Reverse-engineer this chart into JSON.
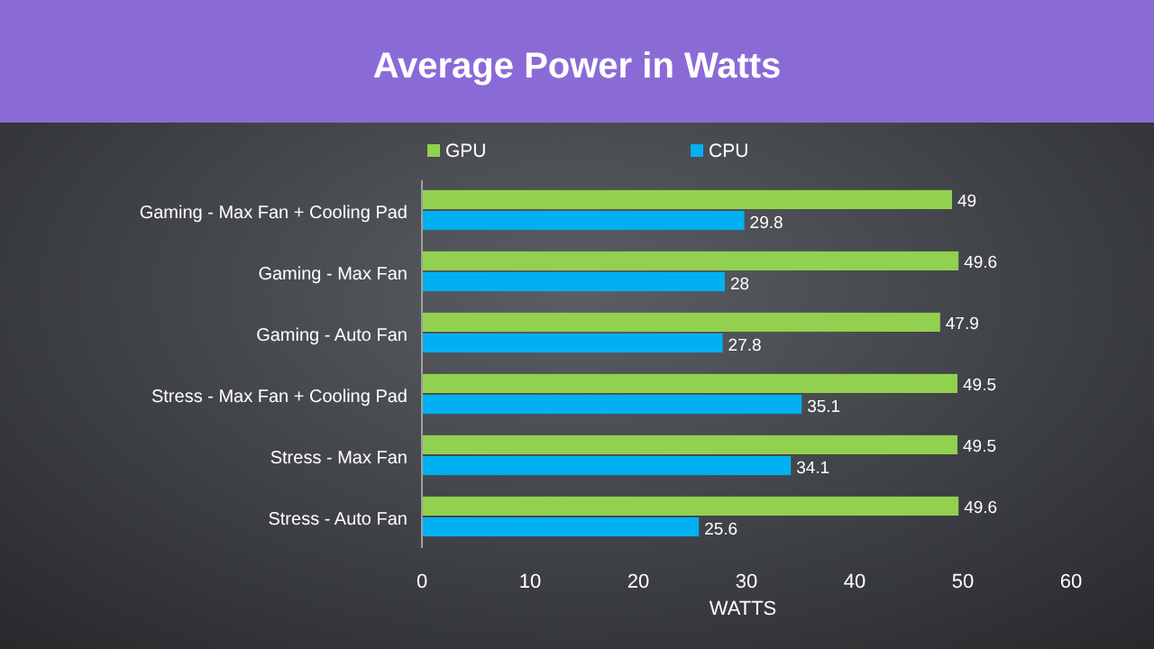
{
  "chart_data": {
    "type": "bar",
    "orientation": "horizontal",
    "title": "Average Power in Watts",
    "xlabel": "WATTS",
    "categories": [
      "Gaming - Max Fan + Cooling Pad",
      "Gaming - Max Fan",
      "Gaming - Auto Fan",
      "Stress - Max Fan + Cooling Pad",
      "Stress - Max Fan",
      "Stress - Auto Fan"
    ],
    "series": [
      {
        "name": "GPU",
        "color": "#92d050",
        "values": [
          49,
          49.6,
          47.9,
          49.5,
          49.5,
          49.6
        ]
      },
      {
        "name": "CPU",
        "color": "#00b0f0",
        "values": [
          29.8,
          28,
          27.8,
          35.1,
          34.1,
          25.6
        ]
      }
    ],
    "xlim": [
      0,
      60
    ],
    "xticks": [
      0,
      10,
      20,
      30,
      40,
      50,
      60
    ],
    "data_labels": true,
    "legend": "top",
    "grid": false
  }
}
